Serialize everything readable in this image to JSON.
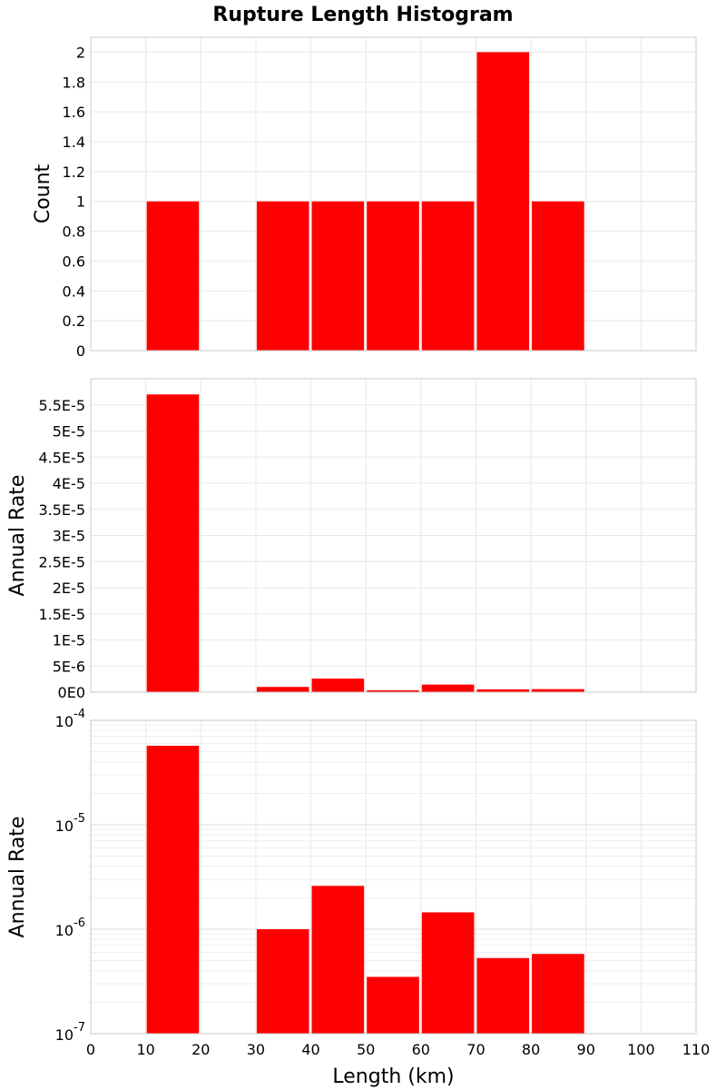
{
  "chart_data": [
    {
      "type": "bar",
      "panel": "count",
      "title": "Rupture Length Histogram",
      "ylabel": "Count",
      "xlim": [
        0,
        110
      ],
      "ylim": [
        0,
        2.1
      ],
      "yticks": [
        0,
        0.2,
        0.4,
        0.6,
        0.8,
        1,
        1.2,
        1.4,
        1.6,
        1.8,
        2
      ],
      "ytick_labels": [
        "0",
        "0.2",
        "0.4",
        "0.6",
        "0.8",
        "1",
        "1.2",
        "1.4",
        "1.6",
        "1.8",
        "2"
      ],
      "bins": [
        [
          10,
          20
        ],
        [
          30,
          40
        ],
        [
          40,
          50
        ],
        [
          50,
          60
        ],
        [
          60,
          70
        ],
        [
          70,
          80
        ],
        [
          80,
          90
        ]
      ],
      "values": [
        1,
        1,
        1,
        1,
        1,
        2,
        1
      ],
      "color": "#ff0000",
      "grid": true
    },
    {
      "type": "bar",
      "panel": "rate-linear",
      "ylabel": "Annual Rate",
      "xlim": [
        0,
        110
      ],
      "ylim": [
        0,
        6e-05
      ],
      "yticks": [
        0,
        5e-06,
        1e-05,
        1.5e-05,
        2e-05,
        2.5e-05,
        3e-05,
        3.5e-05,
        4e-05,
        4.5e-05,
        5e-05,
        5.5e-05
      ],
      "ytick_labels": [
        "0E0",
        "5E-6",
        "1E-5",
        "1.5E-5",
        "2E-5",
        "2.5E-5",
        "3E-5",
        "3.5E-5",
        "4E-5",
        "4.5E-5",
        "5E-5",
        "5.5E-5"
      ],
      "bins": [
        [
          10,
          20
        ],
        [
          30,
          40
        ],
        [
          40,
          50
        ],
        [
          50,
          60
        ],
        [
          60,
          70
        ],
        [
          70,
          80
        ],
        [
          80,
          90
        ]
      ],
      "values": [
        5.7e-05,
        1e-06,
        2.6e-06,
        3.5e-07,
        1.45e-06,
        5.3e-07,
        5.8e-07
      ],
      "color": "#ff0000",
      "grid": true
    },
    {
      "type": "bar",
      "panel": "rate-log",
      "ylabel": "Annual Rate",
      "xlabel": "Length (km)",
      "yscale": "log",
      "xlim": [
        0,
        110
      ],
      "ylim": [
        1e-07,
        0.0001
      ],
      "ytick_labels": [
        {
          "base": "10",
          "exp": "-7",
          "value": 1e-07
        },
        {
          "base": "10",
          "exp": "-6",
          "value": 1e-06
        },
        {
          "base": "10",
          "exp": "-5",
          "value": 1e-05
        },
        {
          "base": "10",
          "exp": "-4",
          "value": 0.0001
        }
      ],
      "xticks": [
        0,
        10,
        20,
        30,
        40,
        50,
        60,
        70,
        80,
        90,
        100,
        110
      ],
      "xtick_labels": [
        "0",
        "10",
        "20",
        "30",
        "40",
        "50",
        "60",
        "70",
        "80",
        "90",
        "100",
        "110"
      ],
      "bins": [
        [
          10,
          20
        ],
        [
          30,
          40
        ],
        [
          40,
          50
        ],
        [
          50,
          60
        ],
        [
          60,
          70
        ],
        [
          70,
          80
        ],
        [
          80,
          90
        ]
      ],
      "values": [
        5.7e-05,
        1e-06,
        2.6e-06,
        3.5e-07,
        1.45e-06,
        5.3e-07,
        5.8e-07
      ],
      "color": "#ff0000",
      "grid": true
    }
  ]
}
